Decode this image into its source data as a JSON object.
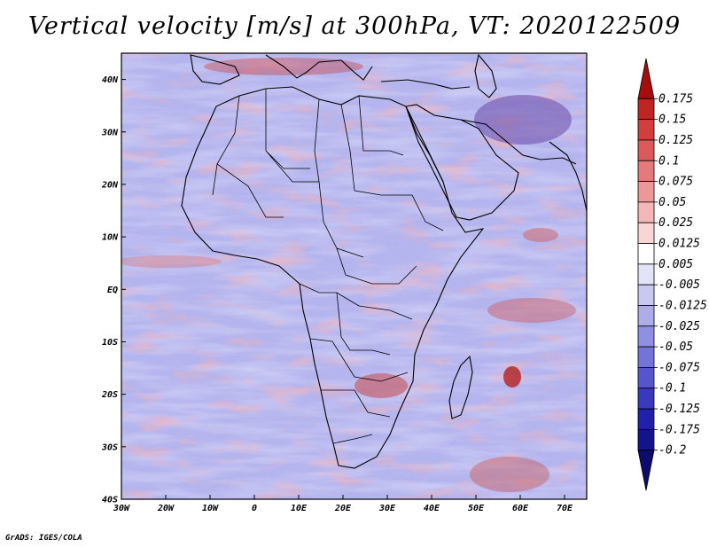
{
  "title": "Vertical velocity [m/s] at 300hPa, VT: 2020122509",
  "footer": "GrADS: IGES/COLA",
  "map": {
    "lat_labels": [
      "40N",
      "30N",
      "20N",
      "10N",
      "EQ",
      "10S",
      "20S",
      "30S",
      "40S"
    ],
    "lat_values": [
      40,
      30,
      20,
      10,
      0,
      -10,
      -20,
      -30,
      -40
    ],
    "lon_labels": [
      "30W",
      "20W",
      "10W",
      "0",
      "10E",
      "20E",
      "30E",
      "40E",
      "50E",
      "60E",
      "70E"
    ],
    "lon_values": [
      -30,
      -20,
      -10,
      0,
      10,
      20,
      30,
      40,
      50,
      60,
      70
    ],
    "lon_range": [
      -30,
      75
    ],
    "lat_range": [
      -40,
      45
    ]
  },
  "colorbar": {
    "labels": [
      "0.175",
      "0.15",
      "0.125",
      "0.1",
      "0.075",
      "0.05",
      "0.025",
      "0.0125",
      "0.005",
      "-0.005",
      "-0.0125",
      "-0.025",
      "-0.05",
      "-0.075",
      "-0.1",
      "-0.125",
      "-0.175",
      "-0.2"
    ],
    "colors": [
      "#a80d0d",
      "#c02525",
      "#d03e3e",
      "#dc5a5a",
      "#e57a7a",
      "#ec9898",
      "#f3b7b7",
      "#f9d6d6",
      "#ffffff",
      "#e3e3f7",
      "#c8c8f0",
      "#adadea",
      "#9090e2",
      "#7474d8",
      "#5555cc",
      "#3939bc",
      "#2020a8",
      "#14148a",
      "#0c0c6e"
    ]
  }
}
